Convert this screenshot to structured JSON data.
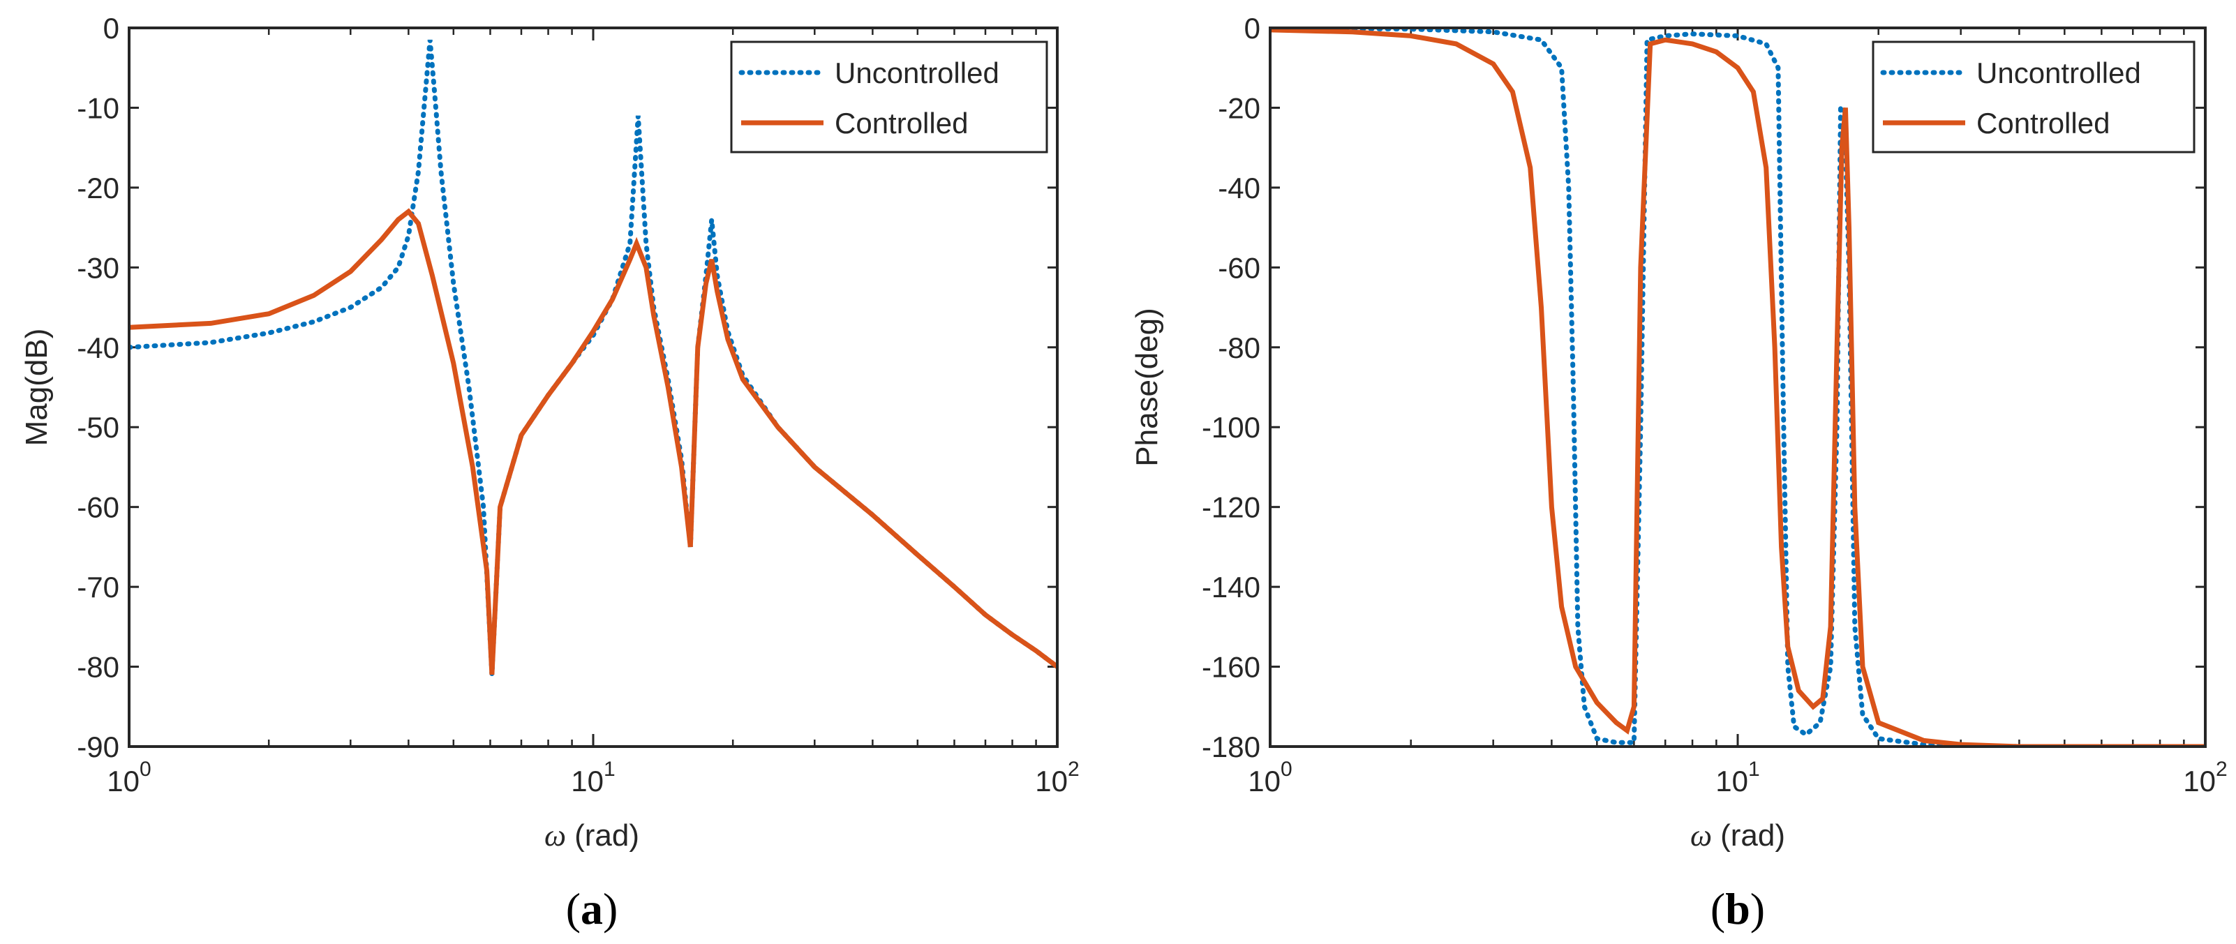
{
  "colors": {
    "uncontrolled": "#0072BD",
    "controlled": "#D95319",
    "axes": "#262626",
    "background": "#ffffff"
  },
  "chart_data": [
    {
      "id": "a",
      "type": "line",
      "subplot_label": "a",
      "xscale": "log",
      "xlim": [
        1,
        100
      ],
      "ylim": [
        -90,
        0
      ],
      "xticks": [
        1,
        10,
        100
      ],
      "xtick_labels": [
        {
          "base": "10",
          "exp": "0"
        },
        {
          "base": "10",
          "exp": "1"
        },
        {
          "base": "10",
          "exp": "2"
        }
      ],
      "yticks": [
        -90,
        -80,
        -70,
        -60,
        -50,
        -40,
        -30,
        -20,
        -10,
        0
      ],
      "ytick_labels": [
        "-90",
        "-80",
        "-70",
        "-60",
        "-50",
        "-40",
        "-30",
        "-20",
        "-10",
        "0"
      ],
      "xlabel": {
        "symbol": "ω",
        "text": "(rad)"
      },
      "ylabel": "Mag(dB)",
      "legend": {
        "position": "top-right",
        "entries": [
          "Uncontrolled",
          "Controlled"
        ]
      },
      "series": [
        {
          "name": "Uncontrolled",
          "style": "dotted",
          "x": [
            1,
            1.5,
            2,
            2.5,
            3,
            3.5,
            3.8,
            4.0,
            4.2,
            4.35,
            4.45,
            4.55,
            4.7,
            5.0,
            5.4,
            5.8,
            6.05,
            6.3,
            7,
            8,
            9,
            10,
            11,
            12,
            12.5,
            13,
            13.5,
            14.5,
            15.5,
            16.2,
            16.8,
            17.5,
            18.0,
            18.5,
            19.5,
            21,
            25,
            30,
            40,
            50,
            60,
            70,
            80,
            90,
            100
          ],
          "y": [
            -40.0,
            -39.4,
            -38.2,
            -36.8,
            -35.0,
            -32.5,
            -30.0,
            -26.0,
            -18.0,
            -8.0,
            -1.5,
            -8.0,
            -18.0,
            -32.0,
            -45.0,
            -60.0,
            -81.0,
            -60.0,
            -51.0,
            -46.0,
            -42.0,
            -38.5,
            -34.0,
            -27.0,
            -11.0,
            -27.0,
            -35.0,
            -44.0,
            -54.0,
            -65.0,
            -40.0,
            -31.0,
            -24.0,
            -31.0,
            -38.0,
            -43.5,
            -50.0,
            -55.0,
            -61.0,
            -66.0,
            -70.0,
            -73.5,
            -76.0,
            -78.0,
            -80.0
          ]
        },
        {
          "name": "Controlled",
          "style": "solid",
          "x": [
            1,
            1.5,
            2,
            2.5,
            3,
            3.5,
            3.8,
            4.0,
            4.2,
            4.5,
            5.0,
            5.5,
            5.9,
            6.05,
            6.3,
            7,
            8,
            9,
            10,
            11,
            12,
            12.4,
            13,
            13.5,
            14.5,
            15.5,
            16.2,
            16.8,
            17.5,
            18.0,
            18.5,
            19.5,
            21,
            25,
            30,
            40,
            50,
            60,
            70,
            80,
            90,
            100
          ],
          "y": [
            -37.5,
            -37.0,
            -35.8,
            -33.5,
            -30.5,
            -26.5,
            -24.0,
            -23.0,
            -24.5,
            -31.0,
            -42.0,
            -55.0,
            -68.0,
            -81.0,
            -60.0,
            -51.0,
            -46.0,
            -42.0,
            -38.0,
            -34.0,
            -29.0,
            -27.0,
            -30.0,
            -36.0,
            -45.0,
            -55.0,
            -65.0,
            -40.0,
            -32.0,
            -29.0,
            -33.0,
            -39.0,
            -44.0,
            -50.0,
            -55.0,
            -61.0,
            -66.0,
            -70.0,
            -73.5,
            -76.0,
            -78.0,
            -80.0
          ]
        }
      ]
    },
    {
      "id": "b",
      "type": "line",
      "subplot_label": "b",
      "xscale": "log",
      "xlim": [
        1,
        100
      ],
      "ylim": [
        -180,
        0
      ],
      "xticks": [
        1,
        10,
        100
      ],
      "xtick_labels": [
        {
          "base": "10",
          "exp": "0"
        },
        {
          "base": "10",
          "exp": "1"
        },
        {
          "base": "10",
          "exp": "2"
        }
      ],
      "yticks": [
        -180,
        -160,
        -140,
        -120,
        -100,
        -80,
        -60,
        -40,
        -20,
        0
      ],
      "ytick_labels": [
        "-180",
        "-160",
        "-140",
        "-120",
        "-100",
        "-80",
        "-60",
        "-40",
        "-20",
        "0"
      ],
      "xlabel": {
        "symbol": "ω",
        "text": "(rad)"
      },
      "ylabel": "Phase(deg)",
      "legend": {
        "position": "top-right",
        "entries": [
          "Uncontrolled",
          "Controlled"
        ]
      },
      "series": [
        {
          "name": "Uncontrolled",
          "style": "dotted",
          "x": [
            1,
            2,
            3,
            3.8,
            4.2,
            4.35,
            4.45,
            4.55,
            4.7,
            5.0,
            5.5,
            6.0,
            6.2,
            6.4,
            7,
            8,
            10,
            11.5,
            12.2,
            12.5,
            12.8,
            13.2,
            14,
            15,
            15.8,
            16.3,
            16.6,
            16.9,
            17.3,
            17.8,
            18.5,
            20,
            25,
            40,
            100
          ],
          "y": [
            0,
            -0.3,
            -1,
            -3,
            -10,
            -40,
            -90,
            -150,
            -170,
            -178,
            -179,
            -179,
            -100,
            -3,
            -2,
            -1.5,
            -2,
            -4,
            -10,
            -90,
            -160,
            -175,
            -177,
            -174,
            -160,
            -100,
            -20,
            -20,
            -60,
            -150,
            -172,
            -178,
            -179.5,
            -180,
            -180
          ]
        },
        {
          "name": "Controlled",
          "style": "solid",
          "x": [
            1,
            1.5,
            2,
            2.5,
            3,
            3.3,
            3.6,
            3.8,
            4.0,
            4.2,
            4.5,
            5.0,
            5.5,
            5.8,
            6.0,
            6.2,
            6.5,
            7,
            8,
            9,
            10,
            10.8,
            11.5,
            12,
            12.4,
            12.8,
            13.5,
            14.5,
            15.2,
            15.8,
            16.3,
            16.7,
            17.0,
            17.3,
            17.8,
            18.5,
            20,
            25,
            30,
            40,
            100
          ],
          "y": [
            -0.5,
            -1,
            -2,
            -4,
            -9,
            -16,
            -35,
            -70,
            -120,
            -145,
            -160,
            -169,
            -174,
            -176,
            -170,
            -60,
            -4,
            -3,
            -4,
            -6,
            -10,
            -16,
            -35,
            -80,
            -130,
            -155,
            -166,
            -170,
            -168,
            -150,
            -80,
            -30,
            -20,
            -50,
            -120,
            -160,
            -174,
            -178.5,
            -179.5,
            -180,
            -180
          ]
        }
      ]
    }
  ]
}
